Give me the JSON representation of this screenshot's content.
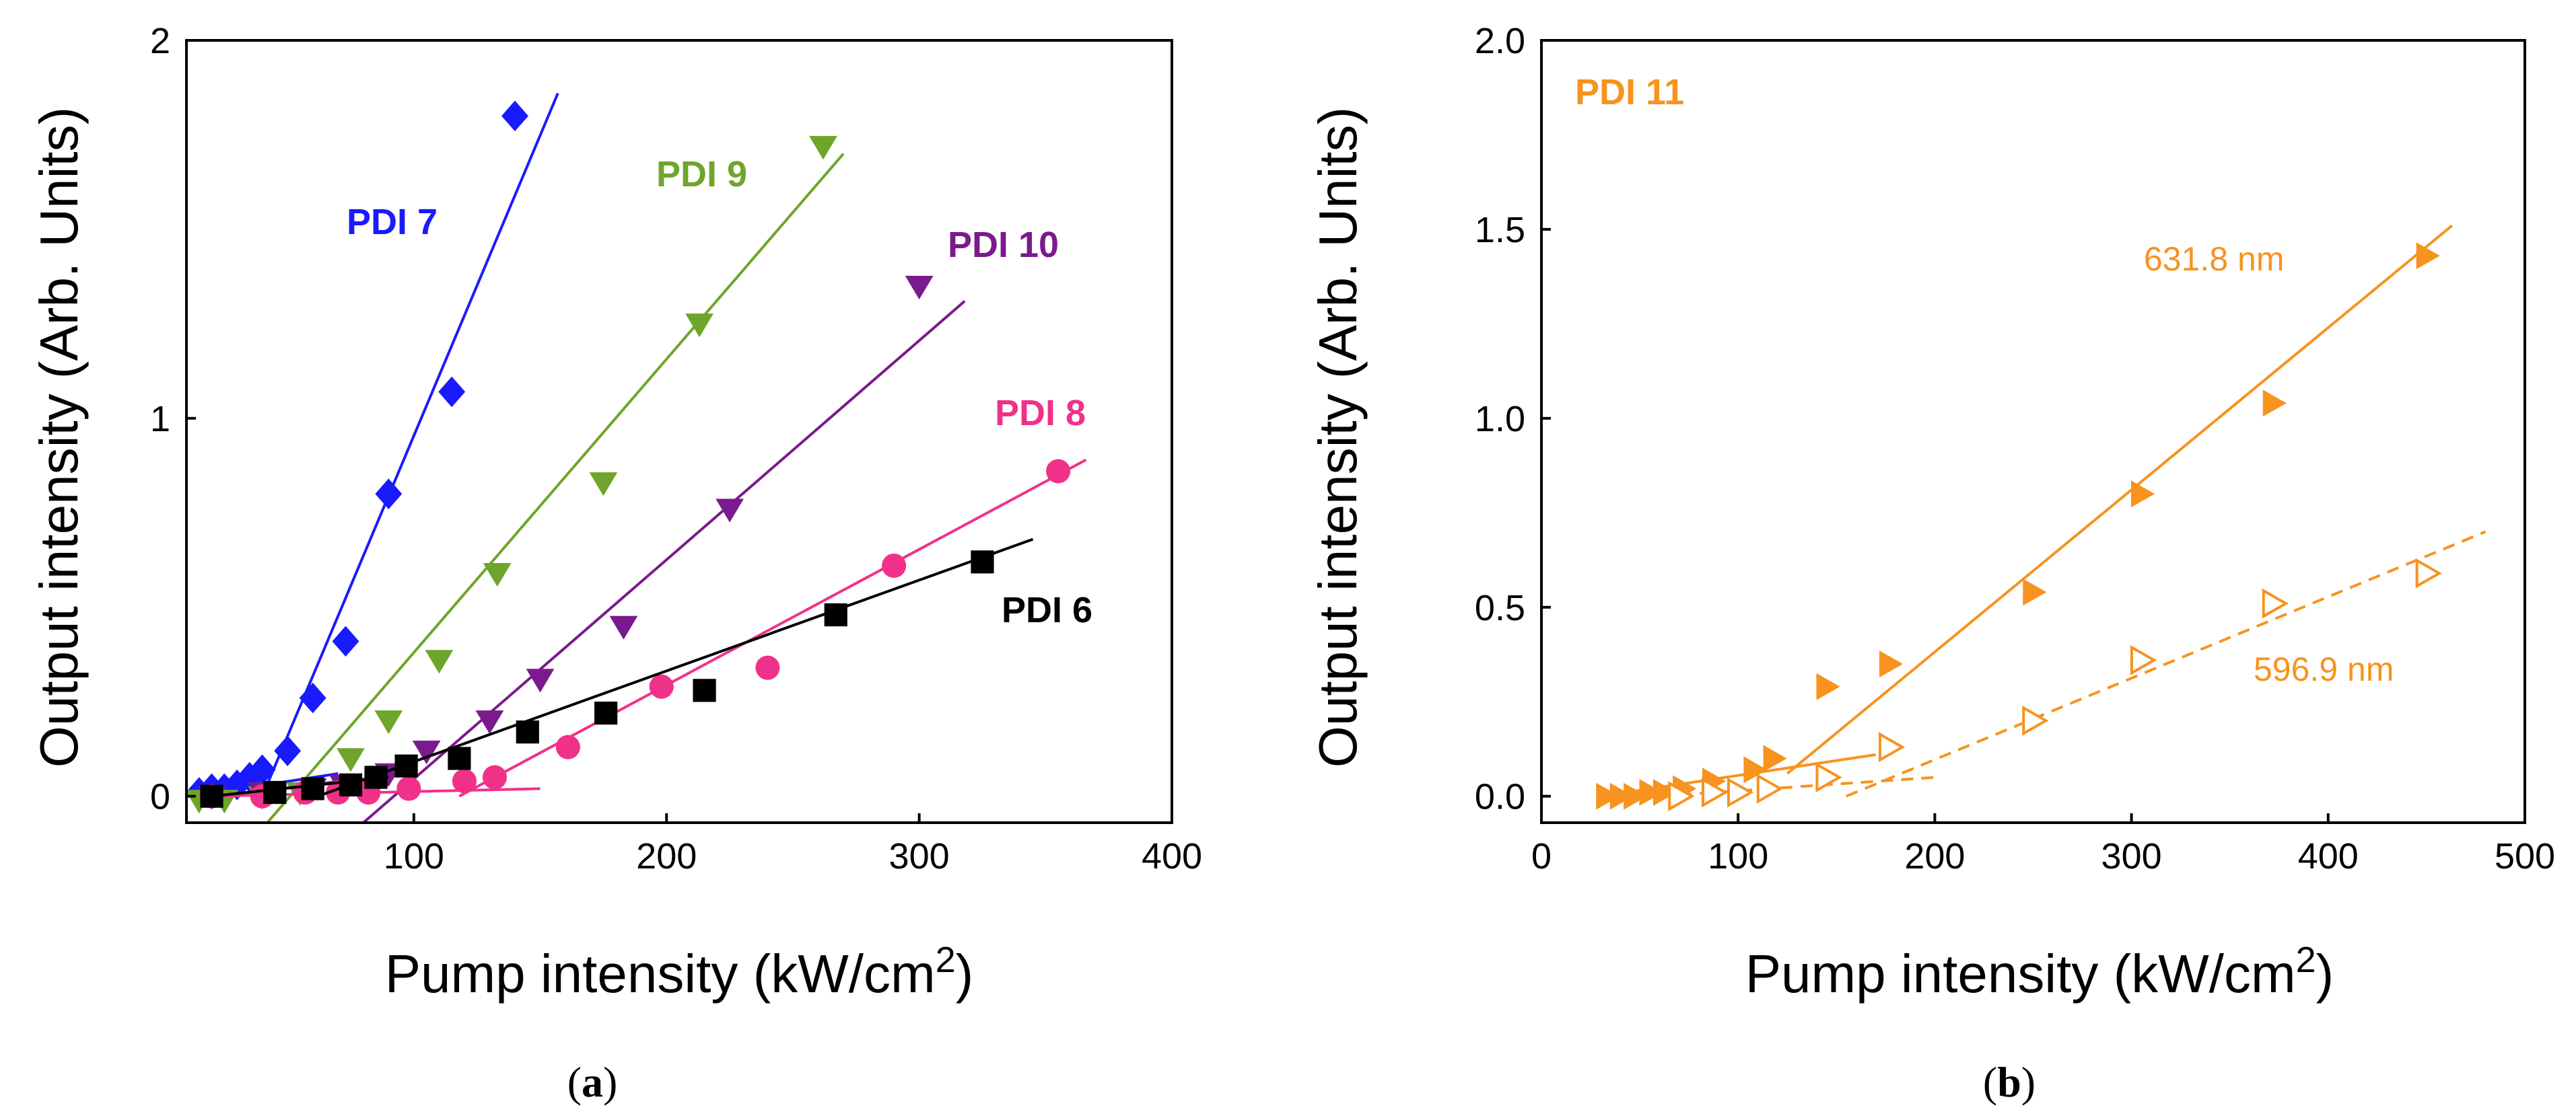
{
  "chart_data": [
    {
      "panel": "(a)",
      "panel_label_parts": [
        "(",
        "a",
        ")"
      ],
      "type": "scatter",
      "title": "",
      "xlabel": "Pump intensity (kW/cm",
      "xlabel_sup": "2",
      "xlabel_close": ")",
      "ylabel": "Output intensity (Arb. Units)",
      "xlim": [
        10,
        400
      ],
      "ylim": [
        -0.07,
        2.0
      ],
      "xticks": [
        100,
        200,
        300,
        400
      ],
      "xtick_labels": [
        "100",
        "200",
        "300",
        "400"
      ],
      "yticks": [
        0,
        1,
        2
      ],
      "ytick_labels": [
        "0",
        "1",
        "2"
      ],
      "grid": false,
      "series": [
        {
          "name": "PDI 7",
          "label": "PDI 7",
          "color": "#1a1aff",
          "marker": "diamond",
          "x": [
            15,
            20,
            25,
            30,
            35,
            40,
            50,
            60,
            73,
            90,
            115,
            140
          ],
          "y": [
            0.01,
            0.02,
            0.02,
            0.03,
            0.05,
            0.07,
            0.12,
            0.26,
            0.41,
            0.8,
            1.07,
            1.8
          ],
          "fits": [
            {
              "x": [
                12,
                70
              ],
              "y": [
                0.0,
                0.06
              ],
              "dash": false
            },
            {
              "x": [
                40,
                157
              ],
              "y": [
                0.0,
                1.86
              ],
              "dash": false
            }
          ]
        },
        {
          "name": "PDI 9",
          "label": "PDI 9",
          "color": "#6fa52b",
          "marker": "triangle-down",
          "x": [
            15,
            25,
            40,
            55,
            75,
            90,
            110,
            133,
            175,
            213,
            262
          ],
          "y": [
            -0.01,
            -0.01,
            0.0,
            0.01,
            0.1,
            0.2,
            0.36,
            0.59,
            0.83,
            1.25,
            1.72
          ],
          "fits": [
            {
              "x": [
                15,
                70
              ],
              "y": [
                -0.01,
                0.04
              ],
              "dash": false
            },
            {
              "x": [
                42,
                270
              ],
              "y": [
                -0.07,
                1.7
              ],
              "dash": false
            }
          ]
        },
        {
          "name": "PDI 10",
          "label": "PDI 10",
          "color": "#7b1a8c",
          "marker": "triangle-down",
          "x": [
            20,
            40,
            60,
            72,
            90,
            105,
            130,
            150,
            183,
            225,
            300
          ],
          "y": [
            0.0,
            0.01,
            0.02,
            0.03,
            0.06,
            0.12,
            0.2,
            0.31,
            0.45,
            0.76,
            1.35
          ],
          "fits": [
            {
              "x": [
                20,
                100
              ],
              "y": [
                0.0,
                0.06
              ],
              "dash": false
            },
            {
              "x": [
                80,
                318
              ],
              "y": [
                -0.07,
                1.31
              ],
              "dash": false
            }
          ]
        },
        {
          "name": "PDI 8",
          "label": "PDI 8",
          "color": "#f0318a",
          "marker": "circle",
          "x": [
            20,
            40,
            57,
            70,
            82,
            98,
            120,
            132,
            161,
            198,
            240,
            290,
            355
          ],
          "y": [
            0.0,
            0.0,
            0.01,
            0.01,
            0.01,
            0.02,
            0.04,
            0.05,
            0.13,
            0.29,
            0.34,
            0.61,
            0.86
          ],
          "fits": [
            {
              "x": [
                20,
                150
              ],
              "y": [
                0.0,
                0.02
              ],
              "dash": false
            },
            {
              "x": [
                118,
                366
              ],
              "y": [
                0.0,
                0.89
              ],
              "dash": false
            }
          ]
        },
        {
          "name": "PDI 6",
          "label": "PDI 6",
          "color": "#000000",
          "marker": "square",
          "x": [
            20,
            45,
            60,
            75,
            85,
            97,
            118,
            145,
            176,
            215,
            267,
            325
          ],
          "y": [
            0.0,
            0.01,
            0.02,
            0.03,
            0.05,
            0.08,
            0.1,
            0.17,
            0.22,
            0.28,
            0.48,
            0.62
          ],
          "fits": [
            {
              "x": [
                20,
                90
              ],
              "y": [
                0.0,
                0.05
              ],
              "dash": false
            },
            {
              "x": [
                62,
                345
              ],
              "y": [
                0.0,
                0.68
              ],
              "dash": false
            }
          ]
        }
      ]
    },
    {
      "panel": "(b)",
      "panel_label_parts": [
        "(",
        "b",
        ")"
      ],
      "type": "scatter",
      "title": "",
      "xlabel": "Pump intensity (kW/cm",
      "xlabel_sup": "2",
      "xlabel_close": ")",
      "ylabel": "Output intensity (Arb. Units)",
      "xlim": [
        0,
        500
      ],
      "ylim": [
        -0.07,
        2.0
      ],
      "xticks": [
        0,
        100,
        200,
        300,
        400,
        500
      ],
      "xtick_labels": [
        "0",
        "100",
        "200",
        "300",
        "400",
        "500"
      ],
      "yticks": [
        0.0,
        0.5,
        1.0,
        1.5,
        2.0
      ],
      "ytick_labels": [
        "0.0",
        "0.5",
        "1.0",
        "1.5",
        "2.0"
      ],
      "grid": false,
      "annotation": "PDI 11",
      "annotation_color": "#f7931e",
      "series": [
        {
          "name": "631.8 nm",
          "label": "631.8 nm",
          "color": "#f7931e",
          "marker": "triangle-right-filled",
          "x": [
            33,
            40,
            47,
            55,
            62,
            72,
            87,
            108,
            118,
            145,
            177,
            250,
            305,
            372,
            450
          ],
          "y": [
            0.0,
            0.0,
            0.0,
            0.01,
            0.01,
            0.02,
            0.04,
            0.07,
            0.1,
            0.29,
            0.35,
            0.54,
            0.8,
            1.04,
            1.43
          ],
          "fits": [
            {
              "x": [
                30,
                170
              ],
              "y": [
                0.0,
                0.11
              ],
              "dash": false
            },
            {
              "x": [
                125,
                463
              ],
              "y": [
                0.06,
                1.51
              ],
              "dash": false
            }
          ]
        },
        {
          "name": "596.9 nm",
          "label": "596.9 nm",
          "color": "#f7931e",
          "marker": "triangle-right-open",
          "x": [
            70,
            87,
            100,
            115,
            145,
            177,
            250,
            305,
            372,
            450
          ],
          "y": [
            0.0,
            0.01,
            0.01,
            0.02,
            0.05,
            0.13,
            0.2,
            0.36,
            0.51,
            0.59
          ],
          "fits": [
            {
              "x": [
                60,
                200
              ],
              "y": [
                0.0,
                0.05
              ],
              "dash": true
            },
            {
              "x": [
                155,
                480
              ],
              "y": [
                0.0,
                0.7
              ],
              "dash": true
            }
          ]
        }
      ]
    }
  ]
}
